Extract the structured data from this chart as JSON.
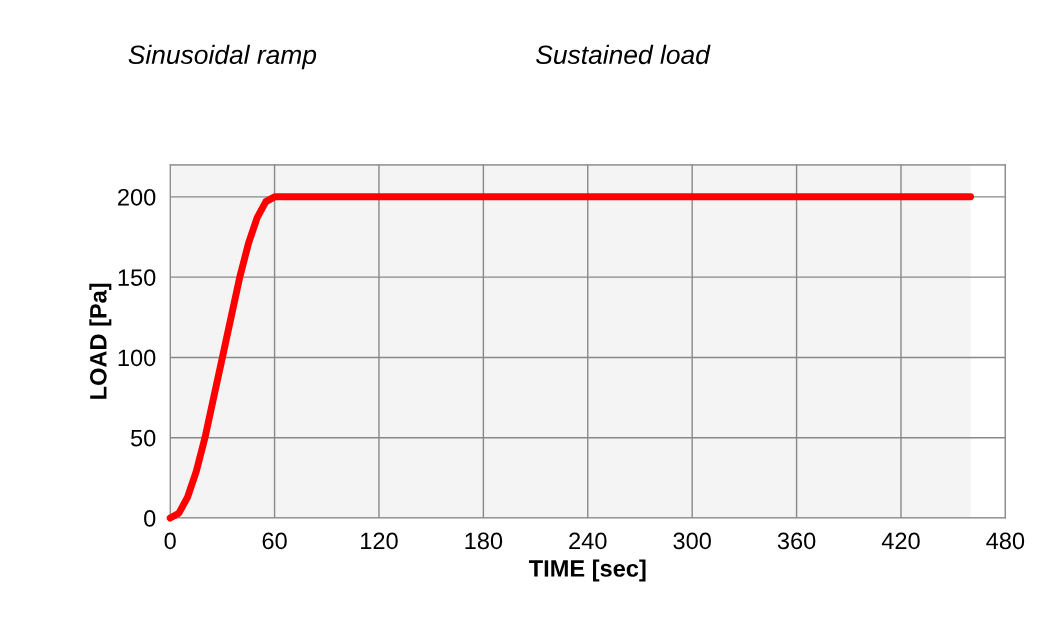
{
  "chart_data": {
    "type": "line",
    "xlabel": "TIME [sec]",
    "ylabel": "LOAD [Pa]",
    "series": [
      {
        "color": "#ff0000",
        "x": [
          0,
          5,
          10,
          15,
          20,
          25,
          30,
          35,
          40,
          45,
          50,
          55,
          60,
          460
        ],
        "values": [
          0,
          3,
          13,
          29,
          50,
          75,
          100,
          125,
          150,
          171,
          187,
          197,
          200,
          200
        ]
      }
    ],
    "xlim": [
      0,
      480
    ],
    "xticks": [
      0,
      60,
      120,
      180,
      240,
      300,
      360,
      420,
      480
    ],
    "ylim": [
      0,
      220
    ],
    "yticks": [
      0,
      50,
      100,
      150,
      200,
      {
        "value": 220,
        "label": null
      }
    ],
    "bands": [
      {
        "axis": "x",
        "from": 0,
        "to": 60
      },
      {
        "axis": "x",
        "from": 60,
        "to": 460
      }
    ],
    "annotations": [
      "Sinusoidal ramp",
      "Sustained load"
    ],
    "grid": true,
    "legend": false,
    "marker": "none",
    "line_style": "solid"
  }
}
